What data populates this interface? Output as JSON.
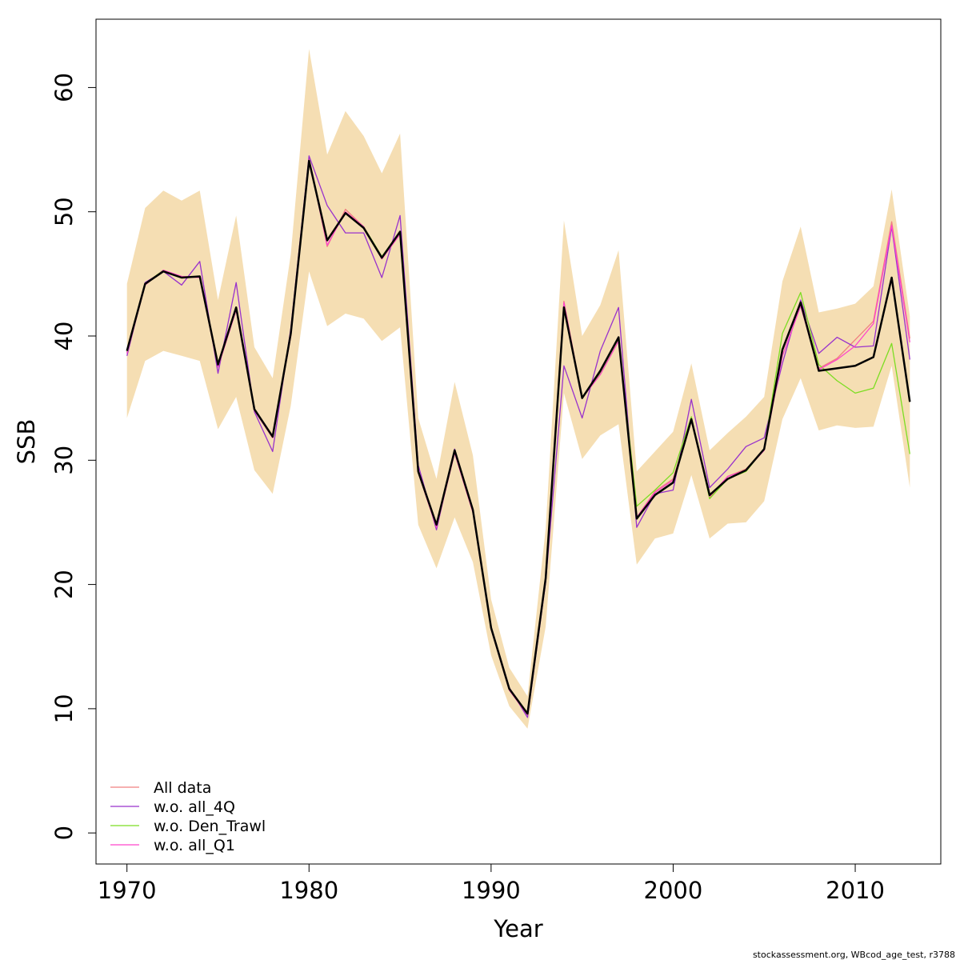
{
  "footer": "stockassessment.org, WBcod_age_test, r3788",
  "chart_data": {
    "type": "line",
    "xlabel": "Year",
    "ylabel": "SSB",
    "xlim": [
      1968.3,
      2014.7
    ],
    "ylim": [
      -2.5,
      65.5
    ],
    "x_ticks": [
      1970,
      1980,
      1990,
      2000,
      2010
    ],
    "y_ticks": [
      0,
      10,
      20,
      30,
      40,
      50,
      60
    ],
    "grid": false,
    "legend_position": "bottom-left",
    "x": [
      1970,
      1971,
      1972,
      1973,
      1974,
      1975,
      1976,
      1977,
      1978,
      1979,
      1980,
      1981,
      1982,
      1983,
      1984,
      1985,
      1986,
      1987,
      1988,
      1989,
      1990,
      1991,
      1992,
      1993,
      1994,
      1995,
      1996,
      1997,
      1998,
      1999,
      2000,
      2001,
      2002,
      2003,
      2004,
      2005,
      2006,
      2007,
      2008,
      2009,
      2010,
      2011,
      2012,
      2013
    ],
    "confidence_band": {
      "color": "#f5deb3",
      "upper": [
        44.2,
        50.3,
        51.7,
        50.9,
        51.7,
        42.9,
        49.7,
        39.1,
        36.6,
        46.6,
        63.1,
        54.6,
        58.1,
        56.1,
        53.1,
        56.3,
        33.4,
        28.5,
        36.3,
        30.4,
        18.8,
        13.3,
        11.0,
        24.5,
        49.3,
        40.0,
        42.5,
        46.9,
        29.1,
        30.7,
        32.3,
        37.8,
        30.8,
        32.2,
        33.5,
        35.1,
        44.4,
        48.8,
        41.9,
        42.2,
        42.6,
        44.0,
        51.8,
        41.6
      ],
      "lower": [
        33.4,
        38.0,
        38.8,
        38.4,
        38.0,
        32.5,
        35.1,
        29.2,
        27.3,
        34.4,
        45.2,
        40.8,
        41.8,
        41.4,
        39.6,
        40.7,
        24.8,
        21.3,
        25.4,
        21.8,
        14.3,
        10.2,
        8.4,
        16.6,
        35.4,
        30.1,
        32.0,
        32.9,
        21.6,
        23.7,
        24.1,
        28.8,
        23.7,
        24.9,
        25.0,
        26.7,
        33.3,
        36.6,
        32.4,
        32.8,
        32.6,
        32.7,
        37.6,
        27.8
      ]
    },
    "series": [
      {
        "name": "",
        "color": "#000000",
        "width": 2.5,
        "values": [
          38.8,
          44.2,
          45.2,
          44.7,
          44.8,
          37.7,
          42.3,
          34.1,
          31.9,
          40.2,
          54.1,
          47.7,
          49.9,
          48.7,
          46.3,
          48.4,
          29.1,
          24.8,
          30.8,
          26.0,
          16.5,
          11.6,
          9.6,
          20.5,
          42.3,
          35.0,
          37.2,
          39.9,
          25.3,
          27.2,
          28.2,
          33.3,
          27.2,
          28.5,
          29.2,
          30.9,
          38.9,
          42.7,
          37.2,
          37.4,
          37.6,
          38.3,
          44.7,
          34.7
        ]
      },
      {
        "name": "All data",
        "color": "#f08080",
        "width": 1.3,
        "values": [
          38.6,
          44.1,
          45.3,
          44.8,
          44.7,
          37.5,
          42.1,
          34.0,
          31.8,
          40.0,
          54.3,
          47.2,
          50.2,
          48.8,
          46.2,
          48.2,
          29.0,
          24.6,
          30.6,
          25.8,
          16.4,
          11.5,
          9.5,
          20.3,
          42.8,
          35.0,
          36.9,
          39.6,
          25.4,
          27.5,
          28.5,
          33.3,
          27.0,
          28.7,
          29.3,
          30.8,
          38.8,
          42.8,
          37.4,
          38.2,
          39.7,
          41.2,
          49.2,
          39.8
        ]
      },
      {
        "name": "w.o. all_4Q",
        "color": "#9932cc",
        "width": 1.3,
        "values": [
          38.4,
          44.3,
          45.2,
          44.1,
          46.0,
          37.0,
          44.3,
          33.9,
          30.7,
          40.6,
          54.5,
          50.5,
          48.3,
          48.3,
          44.7,
          49.7,
          29.6,
          24.4,
          30.9,
          25.9,
          16.6,
          11.7,
          9.3,
          20.2,
          37.6,
          33.4,
          38.8,
          42.3,
          24.6,
          27.3,
          27.6,
          34.9,
          27.8,
          29.3,
          31.1,
          31.8,
          37.8,
          42.9,
          38.6,
          39.9,
          39.1,
          39.2,
          48.8,
          38.1
        ]
      },
      {
        "name": "w.o. Den_Trawl",
        "color": "#7cdd22",
        "width": 1.3,
        "values": [
          38.7,
          44.2,
          45.3,
          44.7,
          44.8,
          37.7,
          42.2,
          34.1,
          31.9,
          40.1,
          54.0,
          47.7,
          49.9,
          48.8,
          46.4,
          48.4,
          29.1,
          24.8,
          30.8,
          26.0,
          16.5,
          11.6,
          9.6,
          20.5,
          42.5,
          35.1,
          37.0,
          39.8,
          26.3,
          27.6,
          29.0,
          33.5,
          26.9,
          28.5,
          29.1,
          30.9,
          40.2,
          43.5,
          37.7,
          36.4,
          35.4,
          35.8,
          39.4,
          30.5
        ]
      },
      {
        "name": "w.o. all_Q1",
        "color": "#ff44cc",
        "width": 1.3,
        "values": [
          38.6,
          44.1,
          45.3,
          44.8,
          44.7,
          37.5,
          42.1,
          34.0,
          31.8,
          40.0,
          54.2,
          47.3,
          50.0,
          48.8,
          46.2,
          48.2,
          29.0,
          24.6,
          30.6,
          25.8,
          16.4,
          11.5,
          9.5,
          20.3,
          42.7,
          35.0,
          36.9,
          39.6,
          25.4,
          27.4,
          28.4,
          33.2,
          27.1,
          28.7,
          29.2,
          30.8,
          38.4,
          42.4,
          37.3,
          38.1,
          39.2,
          41.0,
          48.9,
          39.5
        ]
      }
    ]
  }
}
